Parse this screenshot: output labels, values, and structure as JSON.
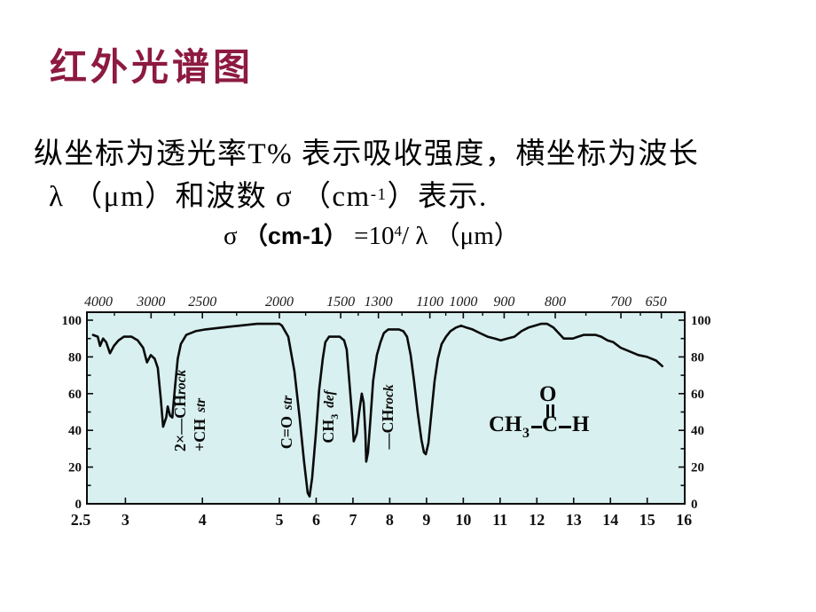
{
  "slide": {
    "title": "红外光谱图",
    "title_color": "#8D1A40",
    "line1": "纵坐标为透光率T% 表示吸收强度，横坐标为波长",
    "line2_pre": "λ （μm）和波数 σ （cm",
    "line2_sup": "-1",
    "line2_post": "）表示.",
    "formula_sigma": "σ ",
    "formula_cm": "（cm-1）",
    "formula_eq": " =10",
    "formula_sup": "4",
    "formula_rest": "/ λ （μm）"
  },
  "chart": {
    "plot_bg": "#d8f0ef",
    "line_color": "#0a0a0a",
    "annotations": {
      "ch_stretch_line1_main": "2×—CH",
      "ch_stretch_line1_italic": "rock",
      "ch_stretch_line2_main": "+CH",
      "ch_stretch_line2_italic": "str",
      "co_main": "C=O",
      "co_italic": "str",
      "ch3_main": "CH",
      "ch3_sub": "3",
      "ch3_italic": "def",
      "chrock_main": "—CH",
      "chrock_italic": "rock"
    },
    "molecule": {
      "ch": "CH",
      "sub3": "3",
      "c": "C",
      "o": "O",
      "h": "H"
    }
  },
  "chart_data": {
    "type": "line",
    "description": "Infrared transmittance spectrum shown on slide; molecule drawn in plot: CH3-C(=O)-H",
    "top_axis_ticks_cm1": [
      4000,
      3000,
      2500,
      2000,
      1500,
      1300,
      1100,
      1000,
      900,
      800,
      700,
      650
    ],
    "bottom_axis_ticks_um": [
      "2.5",
      "3",
      "4",
      "5",
      "6",
      "7",
      "8",
      "9",
      "10",
      "11",
      "12",
      "13",
      "14",
      "15",
      "16"
    ],
    "y_axis_ticks_percent": [
      100,
      80,
      60,
      40,
      20,
      0
    ],
    "xlim_um": [
      2.5,
      16
    ],
    "ylim": [
      0,
      100
    ],
    "grid": false,
    "legend": false,
    "peak_labels": [
      "2×—CHrock +CH str",
      "C=O str",
      "CH3 def",
      "—CHrock"
    ],
    "series": [
      {
        "name": "transmittance_percent_vs_wavelength_um",
        "points": [
          [
            2.58,
            92
          ],
          [
            2.64,
            91
          ],
          [
            2.67,
            86
          ],
          [
            2.71,
            90
          ],
          [
            2.75,
            88
          ],
          [
            2.8,
            82
          ],
          [
            2.85,
            86
          ],
          [
            2.91,
            89
          ],
          [
            2.98,
            91
          ],
          [
            3.08,
            91
          ],
          [
            3.16,
            89
          ],
          [
            3.23,
            85
          ],
          [
            3.28,
            77
          ],
          [
            3.33,
            81
          ],
          [
            3.38,
            79
          ],
          [
            3.42,
            74
          ],
          [
            3.46,
            57
          ],
          [
            3.49,
            42
          ],
          [
            3.53,
            47
          ],
          [
            3.55,
            53
          ],
          [
            3.58,
            48
          ],
          [
            3.61,
            47
          ],
          [
            3.64,
            62
          ],
          [
            3.68,
            79
          ],
          [
            3.72,
            87
          ],
          [
            3.79,
            92
          ],
          [
            3.91,
            94
          ],
          [
            4.04,
            95
          ],
          [
            4.25,
            96
          ],
          [
            4.48,
            97
          ],
          [
            4.71,
            98
          ],
          [
            4.89,
            98
          ],
          [
            5.0,
            98
          ],
          [
            5.07,
            97
          ],
          [
            5.24,
            91
          ],
          [
            5.41,
            72
          ],
          [
            5.55,
            47
          ],
          [
            5.67,
            23
          ],
          [
            5.77,
            6
          ],
          [
            5.82,
            4
          ],
          [
            5.89,
            14
          ],
          [
            5.99,
            38
          ],
          [
            6.08,
            62
          ],
          [
            6.18,
            79
          ],
          [
            6.25,
            88
          ],
          [
            6.35,
            91
          ],
          [
            6.49,
            91
          ],
          [
            6.64,
            91
          ],
          [
            6.76,
            89
          ],
          [
            6.83,
            84
          ],
          [
            6.9,
            67
          ],
          [
            6.98,
            47
          ],
          [
            7.02,
            34
          ],
          [
            7.1,
            38
          ],
          [
            7.17,
            50
          ],
          [
            7.24,
            60
          ],
          [
            7.29,
            55
          ],
          [
            7.34,
            38
          ],
          [
            7.36,
            23
          ],
          [
            7.41,
            28
          ],
          [
            7.48,
            47
          ],
          [
            7.55,
            67
          ],
          [
            7.65,
            81
          ],
          [
            7.75,
            88
          ],
          [
            7.84,
            93
          ],
          [
            7.96,
            95
          ],
          [
            8.11,
            95
          ],
          [
            8.25,
            95
          ],
          [
            8.37,
            94
          ],
          [
            8.47,
            91
          ],
          [
            8.57,
            81
          ],
          [
            8.66,
            67
          ],
          [
            8.76,
            50
          ],
          [
            8.86,
            35
          ],
          [
            8.93,
            28
          ],
          [
            8.98,
            27
          ],
          [
            9.05,
            33
          ],
          [
            9.12,
            47
          ],
          [
            9.22,
            67
          ],
          [
            9.31,
            79
          ],
          [
            9.41,
            87
          ],
          [
            9.53,
            91
          ],
          [
            9.65,
            94
          ],
          [
            9.8,
            96
          ],
          [
            9.94,
            97
          ],
          [
            10.08,
            96
          ],
          [
            10.25,
            95
          ],
          [
            10.45,
            93
          ],
          [
            10.66,
            91
          ],
          [
            10.86,
            90
          ],
          [
            11.02,
            89
          ],
          [
            11.19,
            90
          ],
          [
            11.39,
            91
          ],
          [
            11.58,
            94
          ],
          [
            11.77,
            96
          ],
          [
            11.94,
            97
          ],
          [
            12.11,
            98
          ],
          [
            12.28,
            98
          ],
          [
            12.45,
            96
          ],
          [
            12.59,
            93
          ],
          [
            12.73,
            90
          ],
          [
            12.86,
            90
          ],
          [
            12.98,
            90
          ],
          [
            13.12,
            91
          ],
          [
            13.27,
            92
          ],
          [
            13.43,
            92
          ],
          [
            13.6,
            92
          ],
          [
            13.75,
            91
          ],
          [
            13.92,
            89
          ],
          [
            14.08,
            88
          ],
          [
            14.28,
            85
          ],
          [
            14.52,
            83
          ],
          [
            14.76,
            81
          ],
          [
            15.0,
            80
          ],
          [
            15.24,
            78
          ],
          [
            15.41,
            75
          ]
        ]
      }
    ]
  }
}
